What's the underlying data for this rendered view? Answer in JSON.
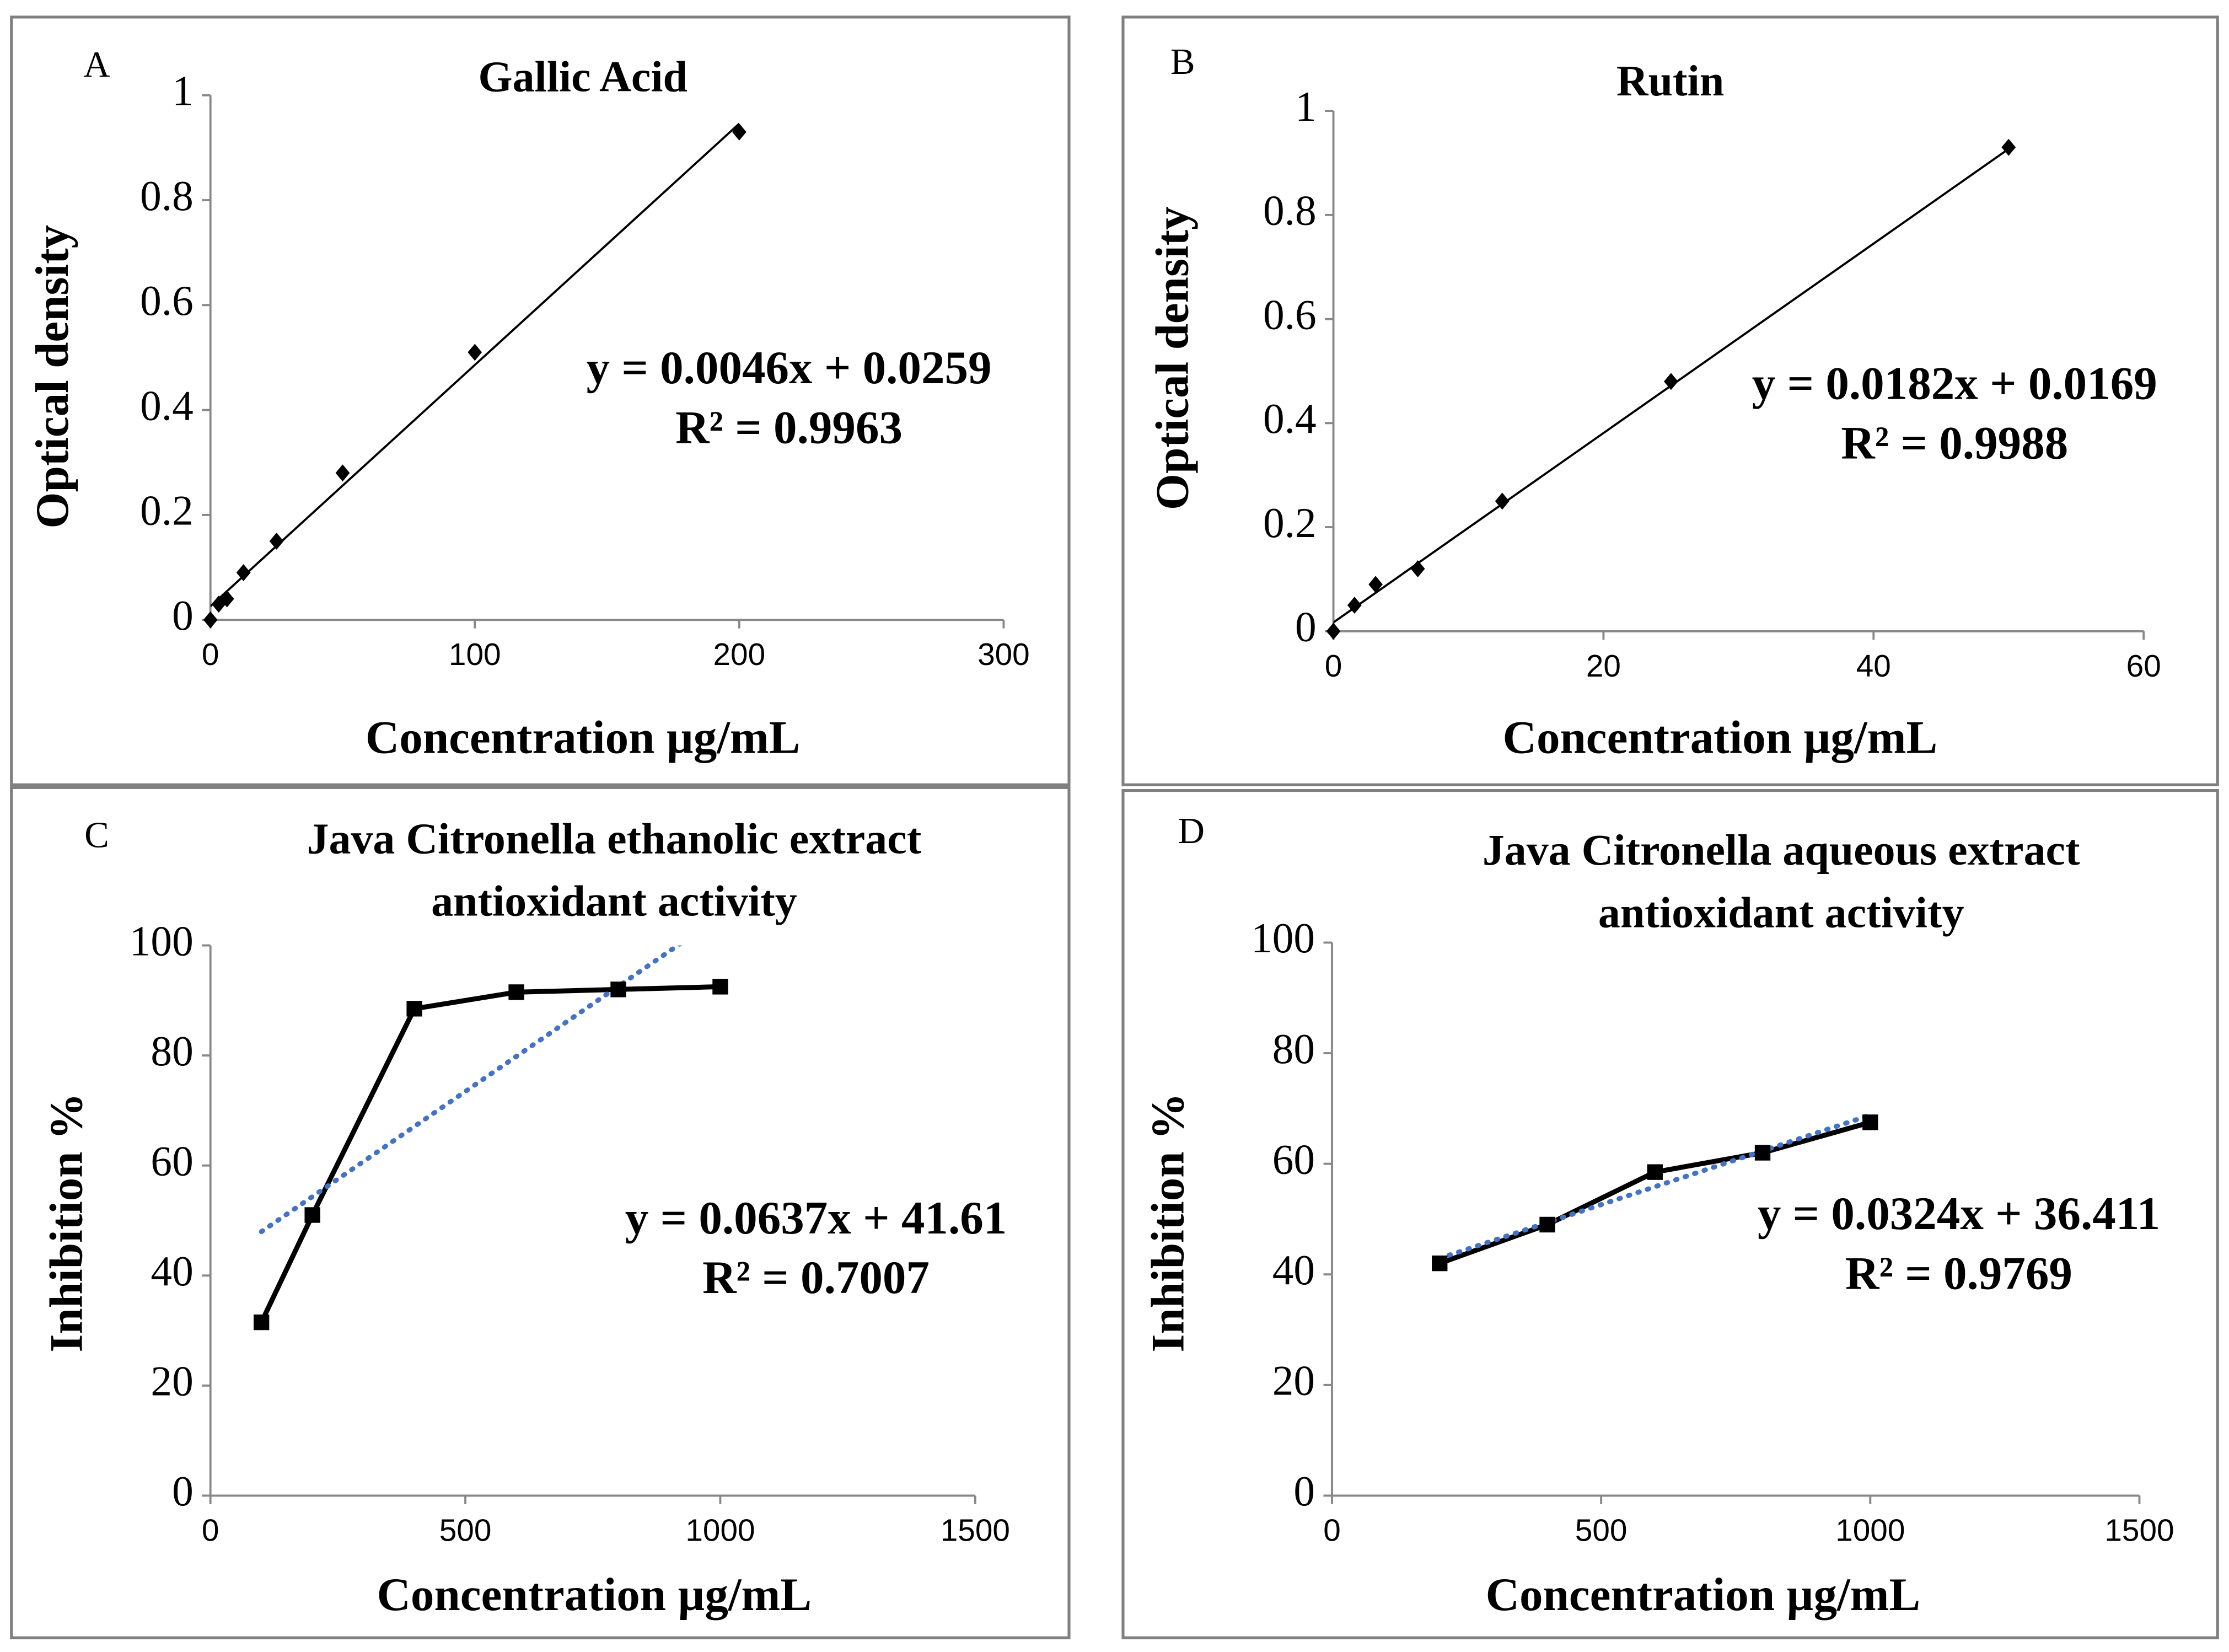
{
  "chart_data": [
    {
      "type": "scatter",
      "panel_label": "A",
      "title": [
        "Gallic Acid"
      ],
      "x_label": "Concentration µg/mL",
      "y_label": "Optical density",
      "x": [
        0,
        3.125,
        6.25,
        12.5,
        25,
        50,
        100,
        200
      ],
      "values": [
        0,
        0.03,
        0.04,
        0.09,
        0.15,
        0.28,
        0.51,
        0.93
      ],
      "marker": "diamond",
      "color": "#000000",
      "trendline": {
        "slope": 0.0046,
        "intercept": 0.0259,
        "color": "#000000",
        "style": "solid"
      },
      "equation": [
        "y = 0.0046x + 0.0259",
        "R² = 0.9963"
      ],
      "xlim": [
        0,
        300
      ],
      "xticks": [
        0,
        100,
        200,
        300
      ],
      "ylim": [
        0,
        1
      ],
      "yticks": [
        0,
        0.2,
        0.4,
        0.6,
        0.8,
        1
      ],
      "grid": false
    },
    {
      "type": "scatter",
      "panel_label": "B",
      "title": [
        "Rutin"
      ],
      "x_label": "Concentration µg/mL",
      "y_label": "Optical density",
      "x": [
        0,
        1.5625,
        3.125,
        6.25,
        12.5,
        25,
        50
      ],
      "values": [
        0,
        0.05,
        0.09,
        0.12,
        0.25,
        0.48,
        0.93
      ],
      "marker": "diamond",
      "color": "#000000",
      "trendline": {
        "slope": 0.0182,
        "intercept": 0.0169,
        "color": "#000000",
        "style": "solid"
      },
      "equation": [
        "y = 0.0182x + 0.0169",
        "R² = 0.9988"
      ],
      "xlim": [
        0,
        60
      ],
      "xticks": [
        0,
        20,
        40,
        60
      ],
      "ylim": [
        0,
        1
      ],
      "yticks": [
        0,
        0.2,
        0.4,
        0.6,
        0.8,
        1
      ],
      "grid": false
    },
    {
      "type": "line",
      "panel_label": "C",
      "title": [
        "Java Citronella ethanolic extract",
        "antioxidant activity"
      ],
      "x_label": "Concentration µg/mL",
      "y_label": "Inhibition %",
      "x": [
        100,
        200,
        400,
        600,
        800,
        1000
      ],
      "values": [
        31.5,
        51,
        88.5,
        91.5,
        92,
        92.5
      ],
      "marker": "square",
      "color": "#000000",
      "trendline": {
        "slope": 0.0637,
        "intercept": 41.61,
        "color": "#4472c4",
        "style": "dotted"
      },
      "equation": [
        "y = 0.0637x + 41.61",
        "R² = 0.7007"
      ],
      "xlim": [
        0,
        1500
      ],
      "xticks": [
        0,
        500,
        1000,
        1500
      ],
      "ylim": [
        0,
        100
      ],
      "yticks": [
        0,
        20,
        40,
        60,
        80,
        100
      ],
      "grid": false
    },
    {
      "type": "line",
      "panel_label": "D",
      "title": [
        "Java Citronella aqueous extract",
        "antioxidant activity"
      ],
      "x_label": "Concentration µg/mL",
      "y_label": "Inhibition %",
      "x": [
        200,
        400,
        600,
        800,
        1000
      ],
      "values": [
        42,
        49,
        58.5,
        62,
        67.5
      ],
      "marker": "square",
      "color": "#000000",
      "trendline": {
        "slope": 0.0324,
        "intercept": 36.411,
        "color": "#4472c4",
        "style": "dotted"
      },
      "equation": [
        "y = 0.0324x + 36.411",
        "R² = 0.9769"
      ],
      "xlim": [
        0,
        1500
      ],
      "xticks": [
        0,
        500,
        1000,
        1500
      ],
      "ylim": [
        0,
        100
      ],
      "yticks": [
        0,
        20,
        40,
        60,
        80,
        100
      ],
      "grid": false
    }
  ]
}
